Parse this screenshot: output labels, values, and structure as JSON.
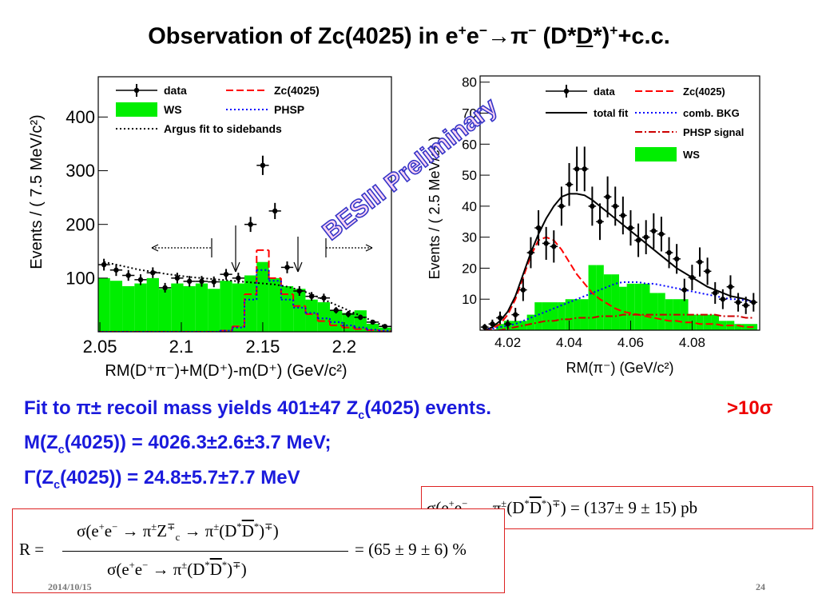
{
  "title": [
    "Observation of Zc(4025) in e",
    "+",
    "e",
    "−",
    "→π",
    "−",
    " (D*",
    "D",
    "*)",
    "+",
    "+c.c."
  ],
  "watermark": "BESIII Preliminary",
  "chart_data": [
    {
      "type": "combo",
      "xlabel": "RM(D⁺π⁻)+M(D⁺)-m(D⁺)  (GeV/c²)",
      "ylabel": "Events / ( 7.5 MeV/c²)",
      "xlim": [
        2.049,
        2.229
      ],
      "ylim": [
        0,
        475
      ],
      "xticks": [
        2.05,
        2.1,
        2.15,
        2.2
      ],
      "yticks": [
        100,
        200,
        300,
        400
      ],
      "x": [
        2.0525,
        2.06,
        2.0675,
        2.075,
        2.0825,
        2.09,
        2.0975,
        2.105,
        2.1125,
        2.12,
        2.1275,
        2.135,
        2.1425,
        2.15,
        2.1575,
        2.165,
        2.1725,
        2.18,
        2.1875,
        2.195,
        2.2025,
        2.21,
        2.2175,
        2.225
      ],
      "series": [
        {
          "name": "data",
          "type": "errorbar",
          "color": "#000000",
          "values": [
            125,
            115,
            105,
            97,
            110,
            82,
            100,
            94,
            94,
            93,
            107,
            100,
            200,
            310,
            225,
            120,
            76,
            66,
            63,
            40,
            33,
            27,
            18,
            10
          ],
          "errors": [
            11,
            11,
            10,
            10,
            10,
            9,
            10,
            10,
            10,
            10,
            10,
            10,
            14,
            18,
            15,
            11,
            9,
            8,
            8,
            6,
            6,
            5,
            4,
            3
          ]
        },
        {
          "name": "Zc(4025)",
          "type": "step",
          "linestyle": "dashed",
          "color": "#ff0000",
          "values": [
            0,
            0,
            0,
            0,
            0,
            0,
            0,
            0,
            0,
            0,
            2,
            10,
            70,
            152,
            100,
            70,
            48,
            33,
            20,
            12,
            8,
            5,
            3,
            1
          ]
        },
        {
          "name": "WS",
          "type": "bar",
          "color": "#00ee00",
          "values": [
            100,
            95,
            85,
            90,
            100,
            80,
            90,
            85,
            90,
            80,
            95,
            90,
            105,
            130,
            100,
            85,
            80,
            60,
            55,
            40,
            35,
            40,
            15,
            8
          ]
        },
        {
          "name": "PHSP",
          "type": "step",
          "linestyle": "dotted",
          "color": "#0000ff",
          "values": [
            0,
            0,
            0,
            0,
            0,
            0,
            0,
            0,
            0,
            0,
            2,
            8,
            60,
            115,
            95,
            60,
            45,
            35,
            25,
            18,
            12,
            8,
            4,
            2
          ]
        },
        {
          "name": "Argus fit to sidebands",
          "type": "line",
          "linestyle": "dotted",
          "color": "#000000",
          "values": [
            130,
            125,
            120,
            115,
            112,
            108,
            105,
            102,
            100,
            98,
            96,
            94,
            92,
            90,
            88,
            84,
            78,
            70,
            60,
            50,
            40,
            30,
            20,
            10
          ]
        }
      ]
    },
    {
      "type": "combo",
      "xlabel": "RM(π⁻) (GeV/c²)",
      "ylabel": "Events / ( 2.5 MeV/c² )",
      "xlim": [
        4.011,
        4.102
      ],
      "ylim": [
        0,
        82
      ],
      "xticks": [
        4.02,
        4.04,
        4.06,
        4.08
      ],
      "yticks": [
        10,
        20,
        30,
        40,
        50,
        60,
        70,
        80
      ],
      "x": [
        4.0125,
        4.015,
        4.0175,
        4.02,
        4.0225,
        4.025,
        4.0275,
        4.03,
        4.0325,
        4.035,
        4.0375,
        4.04,
        4.0425,
        4.045,
        4.0475,
        4.05,
        4.0525,
        4.055,
        4.0575,
        4.06,
        4.0625,
        4.065,
        4.0675,
        4.07,
        4.0725,
        4.075,
        4.0775,
        4.08,
        4.0825,
        4.085,
        4.0875,
        4.09,
        4.0925,
        4.095,
        4.0975,
        4.1
      ],
      "series": [
        {
          "name": "data",
          "type": "errorbar",
          "color": "#000000",
          "values": [
            1,
            2,
            4,
            2,
            5,
            13,
            25,
            33,
            28,
            27,
            40,
            47,
            52,
            52,
            40,
            35,
            43,
            40,
            37,
            33,
            29,
            30,
            32,
            31,
            25,
            23,
            13,
            17,
            22,
            19,
            12,
            10,
            14,
            9,
            8,
            9
          ],
          "errors": [
            1,
            1.4,
            2,
            1.4,
            2.2,
            3.6,
            5,
            5.7,
            5.3,
            5.2,
            6.3,
            6.9,
            7.2,
            7.2,
            6.3,
            5.9,
            6.6,
            6.3,
            6.1,
            5.7,
            5.4,
            5.5,
            5.7,
            5.6,
            5,
            4.8,
            3.6,
            4.1,
            4.7,
            4.4,
            3.5,
            3.2,
            3.7,
            3,
            2.8,
            3
          ]
        },
        {
          "name": "Zc(4025)",
          "type": "line",
          "linestyle": "dashed",
          "color": "#ff0000",
          "values": [
            0,
            0.5,
            2,
            5,
            10,
            17,
            24,
            29,
            30,
            29,
            26,
            22,
            18,
            15,
            12,
            10,
            8.5,
            7,
            6,
            5.5,
            5,
            4.5,
            4,
            3.5,
            3,
            3,
            2.5,
            2.5,
            2,
            2,
            2,
            1.5,
            1.5,
            1.5,
            1,
            1
          ]
        },
        {
          "name": "total fit",
          "type": "line",
          "linestyle": "solid",
          "color": "#000000",
          "values": [
            0,
            1,
            3,
            6,
            11,
            18,
            25,
            31,
            36,
            40,
            43,
            44,
            44,
            43.5,
            42,
            40,
            38,
            36,
            34,
            32,
            30,
            28,
            26,
            24,
            22,
            20,
            18.5,
            17,
            15.5,
            14,
            13,
            12,
            11,
            10.5,
            10,
            9
          ]
        },
        {
          "name": "comb. BKG",
          "type": "line",
          "linestyle": "dotted",
          "color": "#0000ff",
          "values": [
            0,
            0.5,
            1,
            1.5,
            2,
            3,
            4,
            5,
            6,
            7,
            8,
            9,
            10,
            11,
            12,
            13,
            14,
            15,
            15.5,
            15.5,
            15.5,
            15,
            15,
            14.5,
            14,
            13.5,
            13,
            12.5,
            12,
            11.5,
            11,
            10.5,
            10,
            10,
            9.5,
            9
          ]
        },
        {
          "name": "PHSP signal",
          "type": "line",
          "linestyle": "dashdot",
          "color": "#cc0000",
          "values": [
            0,
            0,
            0,
            0.5,
            1,
            1.5,
            2,
            2.5,
            3,
            3,
            3.5,
            3.5,
            4,
            4,
            4,
            4.5,
            4.5,
            4.5,
            5,
            5,
            5,
            5,
            5,
            5,
            5,
            5,
            5,
            5,
            5,
            5,
            5,
            4.5,
            4.5,
            4.5,
            4,
            4
          ]
        },
        {
          "name": "WS",
          "type": "bar",
          "color": "#00ee00",
          "values": [
            0,
            0,
            2,
            3,
            3,
            3,
            5,
            9,
            9,
            9,
            9,
            10,
            10,
            10,
            21,
            21,
            18,
            18,
            14,
            15,
            15,
            15,
            12,
            12,
            10,
            10,
            10,
            5,
            5,
            5,
            5,
            3,
            3,
            2,
            2,
            2
          ]
        }
      ]
    }
  ],
  "text": {
    "line1": [
      "Fit to ",
      "π±",
      " recoil mass yields 401±47 Z",
      "c",
      "(4025) events."
    ],
    "significance": ">10σ",
    "line2": [
      "M(Z",
      "c",
      "(4025)) = 4026.3±2.6±3.7 MeV;"
    ],
    "line3": [
      "Γ(Z",
      "c",
      "(4025)) = 24.8±5.7±7.7 MeV"
    ]
  },
  "box1": [
    "σ(e",
    "+",
    "e",
    "−",
    " → π",
    "±",
    "(D",
    "*",
    "D",
    "*",
    ")",
    "∓",
    ") = (137± 9 ± 15) pb"
  ],
  "box2": {
    "lhs": "R =",
    "numerator": [
      "σ(e",
      "+",
      "e",
      "−",
      " → π",
      "±",
      "Z",
      "∓",
      "c",
      " → π",
      "±",
      "(D",
      "*",
      "D",
      "*",
      ")",
      "∓",
      ")"
    ],
    "denominator": [
      "σ(e",
      "+",
      "e",
      "−",
      " → π",
      "±",
      "(D",
      "*",
      "D",
      "*",
      ")",
      "∓",
      ")"
    ],
    "rhs": "= (65 ± 9 ± 6) %"
  },
  "footer": {
    "date": "2014/10/15",
    "page": "24"
  }
}
